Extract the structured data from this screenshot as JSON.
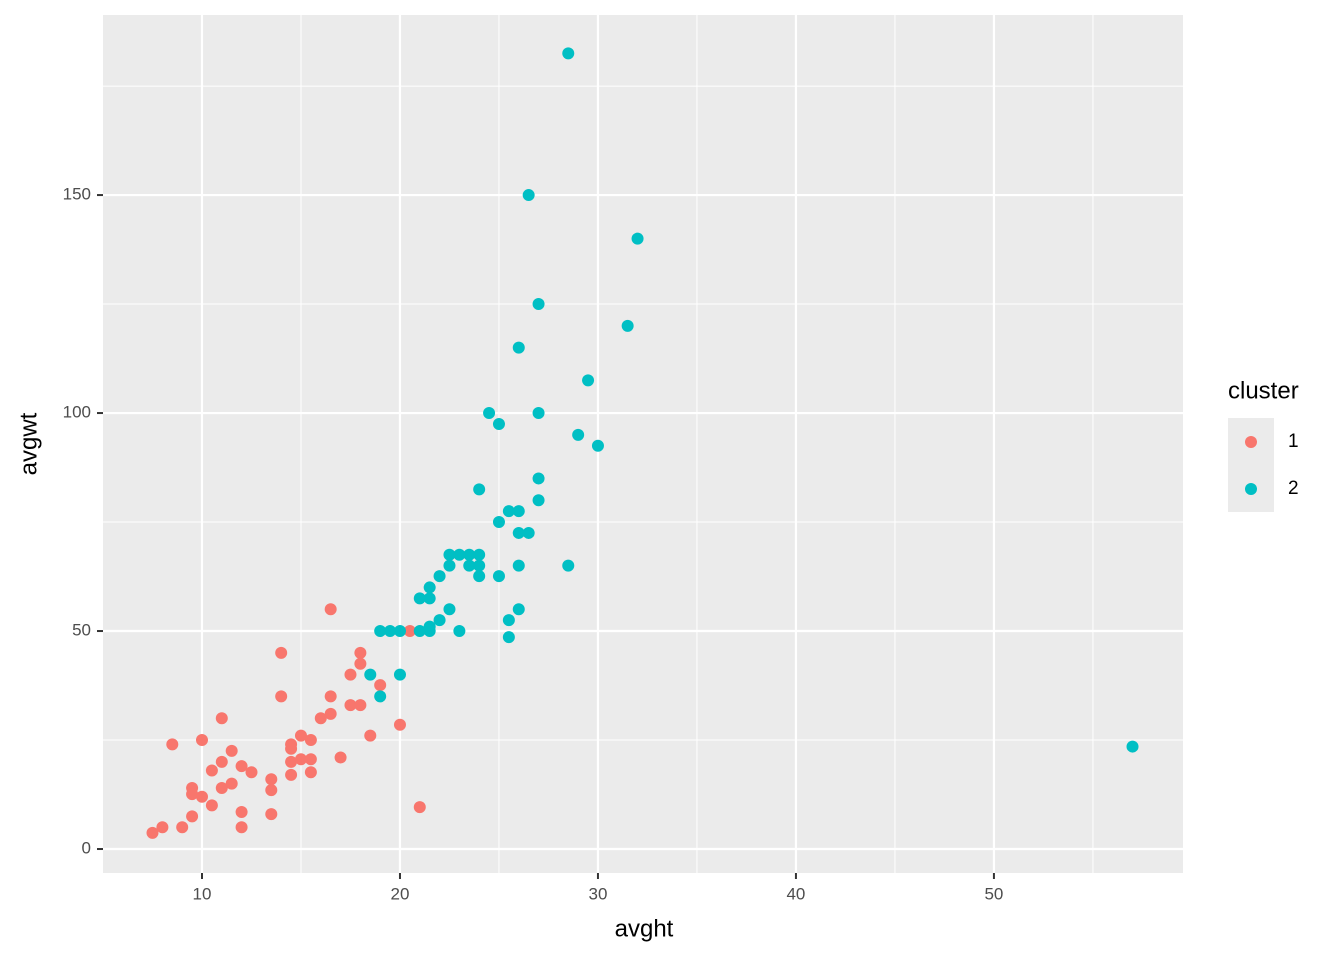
{
  "chart_data": {
    "type": "scatter",
    "x_label": "avght",
    "y_label": "avgwt",
    "legend_title": "cluster",
    "legend_position": "right",
    "grid": true,
    "xlim": [
      5,
      59.55
    ],
    "ylim": [
      -5.5,
      191.3
    ],
    "xticks": [
      10,
      20,
      30,
      40,
      50
    ],
    "yticks": [
      0,
      50,
      100,
      150
    ],
    "x_minor_ticks": [
      15,
      25,
      35,
      45,
      55
    ],
    "y_minor_ticks": [
      25,
      75,
      125,
      175
    ],
    "series": [
      {
        "name": "1",
        "color": "#F8766D",
        "x": [
          7.5,
          8,
          8.5,
          9,
          9.5,
          9.5,
          9.5,
          10,
          10,
          10.5,
          10.5,
          11,
          11,
          11,
          11.5,
          11.5,
          12,
          12,
          12,
          12.5,
          13.5,
          13.5,
          13.5,
          14,
          14,
          14.5,
          14.5,
          14.5,
          14.5,
          15,
          15,
          15.5,
          15.5,
          15.5,
          16,
          16.5,
          16.5,
          16.5,
          17,
          17.5,
          17.5,
          18,
          18,
          18,
          18.5,
          19,
          20,
          20.5,
          21
        ],
        "values": [
          3.7,
          5,
          24,
          5,
          7.5,
          14,
          12.6,
          25,
          12,
          10,
          18,
          30,
          20,
          14,
          22.5,
          15,
          19,
          8.5,
          5,
          17.6,
          16,
          13.5,
          8,
          45,
          35,
          24,
          23,
          20,
          17,
          26,
          20.6,
          25,
          20.6,
          17.6,
          30,
          55,
          35,
          31,
          21,
          40,
          33,
          45,
          42.5,
          33,
          26,
          37.6,
          28.5,
          50,
          9.6
        ]
      },
      {
        "name": "2",
        "color": "#00BFC4",
        "x": [
          18.5,
          19,
          19,
          19.5,
          20,
          20,
          21,
          21,
          21.5,
          21.5,
          21.5,
          21.5,
          22,
          22,
          22.5,
          22.5,
          22.5,
          23,
          23,
          23.5,
          23.5,
          24,
          24,
          24,
          24,
          24.5,
          25,
          25,
          25,
          25.5,
          25.5,
          25.5,
          26,
          26,
          26,
          26,
          26,
          26.5,
          26.5,
          27,
          27,
          27,
          27,
          28.5,
          28.5,
          29,
          29.5,
          30,
          31.5,
          32,
          57
        ],
        "values": [
          40,
          35,
          50,
          50,
          50,
          40,
          57.5,
          50,
          60,
          57.5,
          51,
          50,
          62.6,
          52.5,
          67.5,
          65,
          55,
          67.5,
          50,
          67.5,
          65,
          67.5,
          65,
          62.6,
          82.5,
          100,
          97.5,
          75,
          62.6,
          77.5,
          52.5,
          48.6,
          115,
          77.5,
          72.5,
          65,
          55,
          150,
          72.5,
          125,
          100,
          85,
          80,
          182.5,
          65,
          95,
          107.5,
          92.5,
          120,
          140,
          23.5
        ]
      }
    ]
  }
}
